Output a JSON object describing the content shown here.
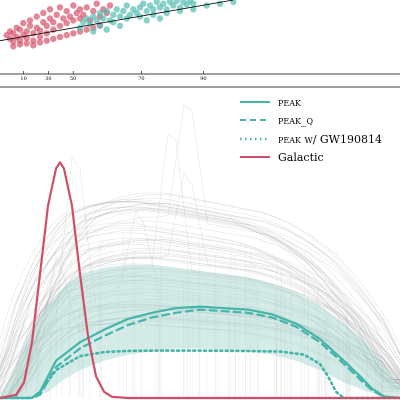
{
  "colors": {
    "peak": "#45b5aa",
    "galactic": "#d04f68",
    "scatter_red": "#d9536b",
    "scatter_teal": "#55bdb2",
    "draws": "#777777",
    "band": "#9fd3cc",
    "axis": "#000000"
  },
  "chart_data": [
    {
      "type": "scatter",
      "title": "",
      "xlabel": "",
      "ylabel": "",
      "tick_labels": [
        "10",
        "30",
        "50",
        "70",
        "90"
      ],
      "xlim": [
        0,
        120
      ],
      "ylim": [
        0,
        80
      ],
      "series": [
        {
          "color": "#d9536b",
          "points": [
            [
              2,
              42
            ],
            [
              3,
              38
            ],
            [
              3,
              46
            ],
            [
              4,
              35
            ],
            [
              4,
              44
            ],
            [
              5,
              40
            ],
            [
              5,
              50
            ],
            [
              6,
              36
            ],
            [
              6,
              48
            ],
            [
              7,
              42
            ],
            [
              7,
              55
            ],
            [
              8,
              39
            ],
            [
              8,
              46
            ],
            [
              9,
              52
            ],
            [
              9,
              58
            ],
            [
              10,
              44
            ],
            [
              10,
              36
            ],
            [
              11,
              50
            ],
            [
              11,
              62
            ],
            [
              12,
              47
            ],
            [
              12,
              40
            ],
            [
              13,
              56
            ],
            [
              13,
              66
            ],
            [
              14,
              52
            ],
            [
              14,
              44
            ],
            [
              15,
              60
            ],
            [
              15,
              70
            ],
            [
              16,
              48
            ],
            [
              16,
              56
            ],
            [
              17,
              64
            ],
            [
              18,
              52
            ],
            [
              18,
              72
            ],
            [
              19,
              60
            ],
            [
              20,
              55
            ],
            [
              20,
              68
            ],
            [
              21,
              62
            ],
            [
              22,
              58
            ],
            [
              22,
              74
            ],
            [
              23,
              66
            ],
            [
              24,
              60
            ],
            [
              24,
              70
            ],
            [
              25,
              64
            ],
            [
              26,
              72
            ],
            [
              27,
              58
            ],
            [
              28,
              68
            ],
            [
              29,
              76
            ],
            [
              30,
              62
            ],
            [
              31,
              70
            ],
            [
              32,
              66
            ],
            [
              33,
              74
            ],
            [
              4,
              30
            ],
            [
              6,
              32
            ],
            [
              8,
              33
            ],
            [
              10,
              31
            ],
            [
              12,
              34
            ],
            [
              14,
              36
            ],
            [
              16,
              38
            ],
            [
              18,
              40
            ],
            [
              20,
              42
            ],
            [
              22,
              44
            ],
            [
              24,
              46
            ],
            [
              26,
              48
            ],
            [
              28,
              50
            ],
            [
              30,
              53
            ]
          ]
        },
        {
          "color": "#55bdb2",
          "points": [
            [
              24,
              50
            ],
            [
              25,
              56
            ],
            [
              26,
              60
            ],
            [
              27,
              54
            ],
            [
              28,
              62
            ],
            [
              29,
              58
            ],
            [
              30,
              66
            ],
            [
              31,
              60
            ],
            [
              32,
              68
            ],
            [
              33,
              58
            ],
            [
              34,
              64
            ],
            [
              35,
              70
            ],
            [
              36,
              62
            ],
            [
              37,
              68
            ],
            [
              38,
              74
            ],
            [
              39,
              64
            ],
            [
              40,
              70
            ],
            [
              41,
              66
            ],
            [
              42,
              72
            ],
            [
              43,
              76
            ],
            [
              44,
              68
            ],
            [
              45,
              74
            ],
            [
              46,
              70
            ],
            [
              47,
              78
            ],
            [
              48,
              72
            ],
            [
              49,
              76
            ],
            [
              50,
              70
            ],
            [
              51,
              78
            ],
            [
              52,
              74
            ],
            [
              53,
              79
            ],
            [
              54,
              72
            ],
            [
              55,
              78
            ],
            [
              56,
              75
            ],
            [
              57,
              79
            ],
            [
              58,
              76
            ],
            [
              30,
              52
            ],
            [
              34,
              56
            ],
            [
              38,
              60
            ],
            [
              42,
              62
            ],
            [
              46,
              64
            ],
            [
              50,
              66
            ],
            [
              54,
              68
            ],
            [
              58,
              70
            ],
            [
              62,
              74
            ],
            [
              66,
              76
            ],
            [
              70,
              78
            ],
            [
              32,
              48
            ],
            [
              36,
              52
            ],
            [
              44,
              58
            ],
            [
              48,
              60
            ],
            [
              28,
              46
            ]
          ]
        }
      ],
      "fit_line": {
        "x": [
          0,
          70
        ],
        "y": [
          36,
          80
        ]
      }
    },
    {
      "type": "line",
      "title": "",
      "xlabel": "",
      "ylabel": "",
      "xlim": [
        0,
        100
      ],
      "ylim": [
        0,
        1
      ],
      "legend_placement": "top-right",
      "legend": [
        "peak",
        "peak_q",
        "peak w/ GW190814",
        "Galactic"
      ],
      "series": [
        {
          "name": "peak",
          "style": "solid",
          "color": "#45b5aa",
          "x": [
            0,
            4,
            8,
            10,
            14,
            20,
            26,
            32,
            38,
            44,
            50,
            56,
            62,
            68,
            74,
            80,
            86,
            90,
            93,
            96,
            100
          ],
          "y": [
            0,
            0,
            0,
            0.02,
            0.12,
            0.18,
            0.22,
            0.255,
            0.275,
            0.29,
            0.295,
            0.29,
            0.285,
            0.27,
            0.24,
            0.19,
            0.12,
            0.07,
            0.03,
            0.005,
            0
          ]
        },
        {
          "name": "peak_q",
          "style": "dashed",
          "color": "#45b5aa",
          "x": [
            0,
            4,
            8,
            10,
            14,
            20,
            26,
            32,
            38,
            44,
            50,
            56,
            62,
            68,
            74,
            80,
            86,
            90,
            93,
            96,
            100
          ],
          "y": [
            0,
            0,
            0,
            0.01,
            0.1,
            0.16,
            0.2,
            0.235,
            0.26,
            0.275,
            0.285,
            0.28,
            0.275,
            0.26,
            0.23,
            0.18,
            0.11,
            0.06,
            0.025,
            0.003,
            0
          ]
        },
        {
          "name": "peak w/ GW190814",
          "style": "dotted",
          "color": "#45b5aa",
          "x": [
            0,
            4,
            8,
            10,
            14,
            20,
            26,
            32,
            40,
            50,
            60,
            70,
            76,
            80,
            82,
            84,
            86,
            100
          ],
          "y": [
            0,
            0,
            0,
            0.02,
            0.09,
            0.135,
            0.148,
            0.152,
            0.153,
            0.153,
            0.152,
            0.15,
            0.14,
            0.11,
            0.07,
            0.02,
            0,
            0
          ]
        },
        {
          "name": "Galactic",
          "style": "solid",
          "color": "#d04f68",
          "x": [
            0,
            4,
            6,
            8,
            10,
            12,
            14,
            15,
            16,
            18,
            20,
            22,
            24,
            26,
            28,
            32,
            100
          ],
          "y": [
            0,
            0.01,
            0.05,
            0.18,
            0.4,
            0.62,
            0.74,
            0.76,
            0.74,
            0.62,
            0.4,
            0.2,
            0.07,
            0.02,
            0.004,
            0,
            0
          ]
        }
      ],
      "band": {
        "x": [
          0,
          4,
          8,
          12,
          16,
          20,
          26,
          32,
          38,
          44,
          50,
          56,
          62,
          68,
          74,
          80,
          86,
          92,
          96,
          100
        ],
        "low": [
          0,
          0,
          0,
          0.02,
          0.06,
          0.09,
          0.12,
          0.14,
          0.15,
          0.16,
          0.16,
          0.155,
          0.15,
          0.14,
          0.12,
          0.09,
          0.05,
          0.02,
          0.005,
          0
        ],
        "high": [
          0,
          0.1,
          0.22,
          0.3,
          0.36,
          0.4,
          0.42,
          0.43,
          0.43,
          0.42,
          0.41,
          0.4,
          0.39,
          0.37,
          0.34,
          0.3,
          0.24,
          0.17,
          0.1,
          0.04
        ]
      }
    }
  ]
}
